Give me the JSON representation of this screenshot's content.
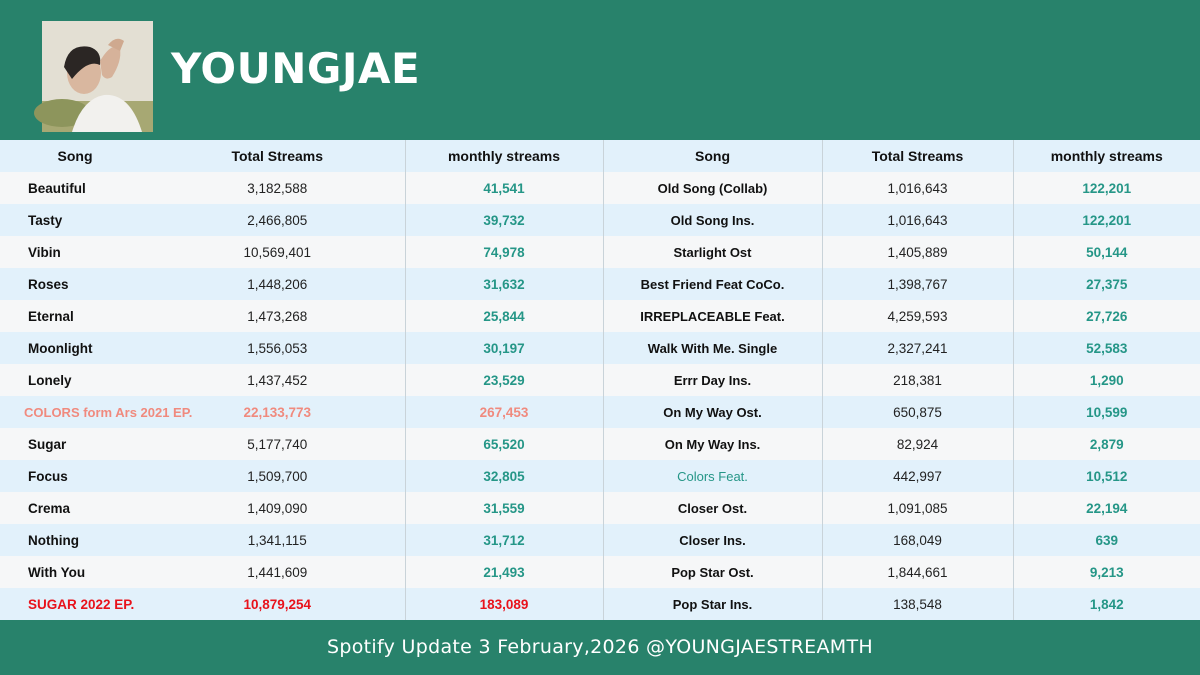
{
  "header": {
    "title": "YOUNGJAE"
  },
  "table": {
    "headers": [
      "Song",
      "Total Streams",
      "monthly streams",
      "Song",
      "Total Streams",
      "monthly streams"
    ],
    "rows": [
      {
        "left_song": "Beautiful",
        "left_total": "3,182,588",
        "left_monthly": "41,541",
        "right_song": "Old Song (Collab)",
        "right_total": "1,016,643",
        "right_monthly": "122,201"
      },
      {
        "left_song": "Tasty",
        "left_total": "2,466,805",
        "left_monthly": "39,732",
        "right_song": "Old Song Ins.",
        "right_total": "1,016,643",
        "right_monthly": "122,201"
      },
      {
        "left_song": "Vibin",
        "left_total": "10,569,401",
        "left_monthly": "74,978",
        "right_song": "Starlight Ost",
        "right_total": "1,405,889",
        "right_monthly": "50,144"
      },
      {
        "left_song": "Roses",
        "left_total": "1,448,206",
        "left_monthly": "31,632",
        "right_song": "Best Friend Feat CoCo.",
        "right_total": "1,398,767",
        "right_monthly": "27,375"
      },
      {
        "left_song": "Eternal",
        "left_total": "1,473,268",
        "left_monthly": "25,844",
        "right_song": "IRREPLACEABLE Feat.",
        "right_total": "4,259,593",
        "right_monthly": "27,726"
      },
      {
        "left_song": "Moonlight",
        "left_total": "1,556,053",
        "left_monthly": "30,197",
        "right_song": "Walk With Me. Single",
        "right_total": "2,327,241",
        "right_monthly": "52,583"
      },
      {
        "left_song": "Lonely",
        "left_total": "1,437,452",
        "left_monthly": "23,529",
        "right_song": "Errr Day Ins.",
        "right_total": "218,381",
        "right_monthly": "1,290"
      },
      {
        "left_song": "COLORS form Ars 2021 EP.",
        "left_total": "22,133,773",
        "left_monthly": "267,453",
        "right_song": "On My Way Ost.",
        "right_total": "650,875",
        "right_monthly": "10,599"
      },
      {
        "left_song": "Sugar",
        "left_total": "5,177,740",
        "left_monthly": "65,520",
        "right_song": "On My Way Ins.",
        "right_total": "82,924",
        "right_monthly": "2,879"
      },
      {
        "left_song": "Focus",
        "left_total": "1,509,700",
        "left_monthly": "32,805",
        "right_song": "Colors Feat.",
        "right_total": "442,997",
        "right_monthly": "10,512"
      },
      {
        "left_song": "Crema",
        "left_total": "1,409,090",
        "left_monthly": "31,559",
        "right_song": "Closer Ost.",
        "right_total": "1,091,085",
        "right_monthly": "22,194"
      },
      {
        "left_song": "Nothing",
        "left_total": "1,341,115",
        "left_monthly": "31,712",
        "right_song": "Closer Ins.",
        "right_total": "168,049",
        "right_monthly": "639"
      },
      {
        "left_song": "With You",
        "left_total": "1,441,609",
        "left_monthly": "21,493",
        "right_song": "Pop Star Ost.",
        "right_total": "1,844,661",
        "right_monthly": "9,213"
      },
      {
        "left_song": "SUGAR 2022 EP.",
        "left_total": "10,879,254",
        "left_monthly": "183,089",
        "right_song": "Pop Star Ins.",
        "right_total": "138,548",
        "right_monthly": "1,842"
      }
    ]
  },
  "footer": {
    "text": "Spotify Update 3 February,2026 @YOUNGJAESTREAMTH"
  },
  "colors": {
    "background": "#28826b",
    "monthly_value": "#259687",
    "ep_colors": "#f08a7e",
    "ep_sugar": "#e8121b",
    "row_alt": "#e2f1fb",
    "row_base": "#f6f7f8"
  }
}
